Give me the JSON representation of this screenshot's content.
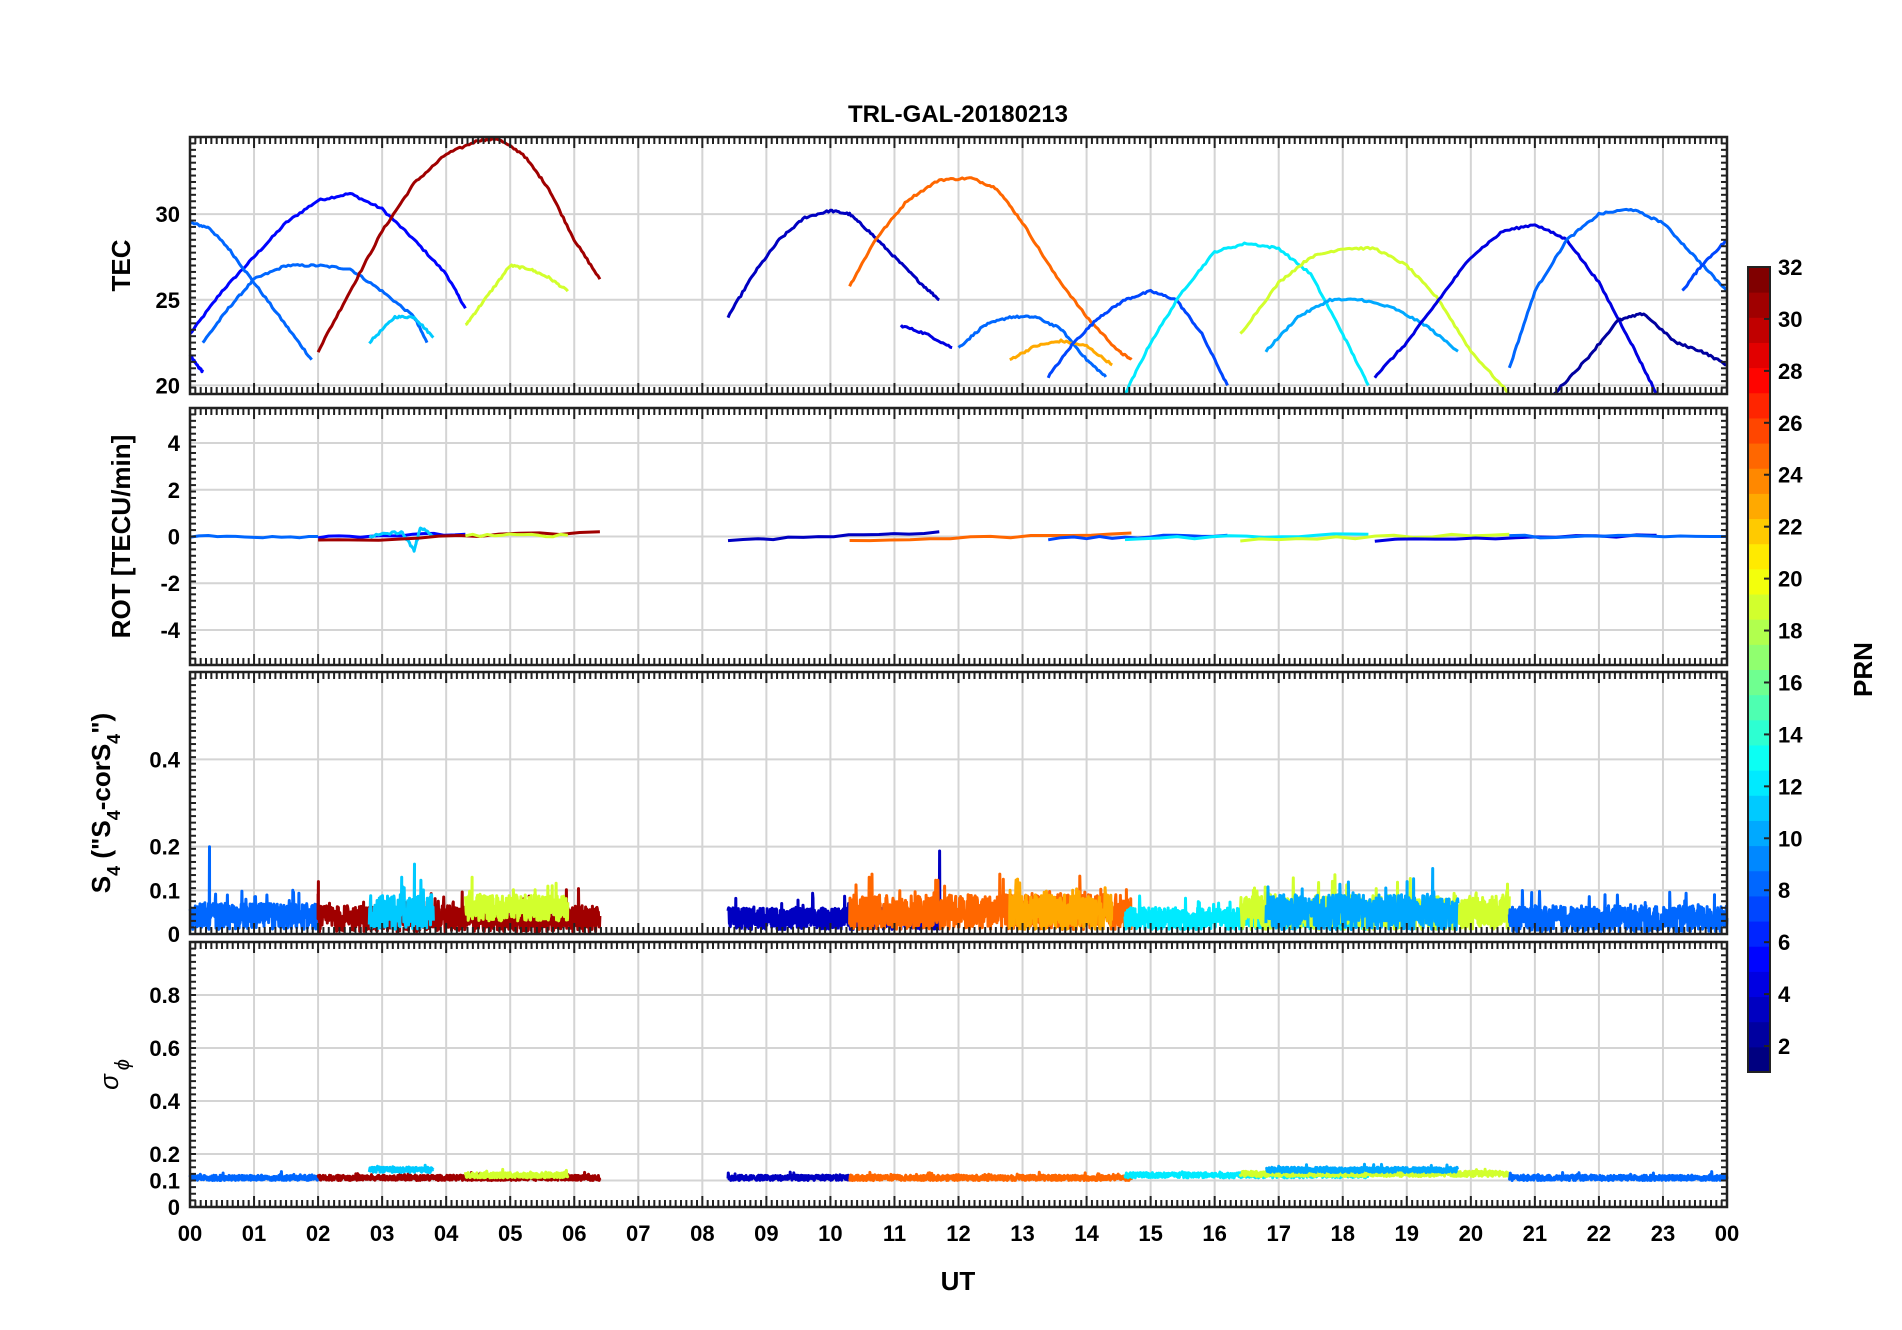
{
  "chart_data": {
    "type": "line",
    "title": "TRL-GAL-20180213",
    "xlabel": "UT",
    "x_ticks": [
      "00",
      "01",
      "02",
      "03",
      "04",
      "05",
      "06",
      "07",
      "08",
      "09",
      "10",
      "11",
      "12",
      "13",
      "14",
      "15",
      "16",
      "17",
      "18",
      "19",
      "20",
      "21",
      "22",
      "23",
      "00"
    ],
    "xlim": [
      0,
      24
    ],
    "colorbar": {
      "label": "PRN",
      "range": [
        1,
        32
      ],
      "ticks": [
        "2",
        "4",
        "6",
        "8",
        "10",
        "12",
        "14",
        "16",
        "18",
        "20",
        "22",
        "24",
        "26",
        "28",
        "30",
        "32"
      ],
      "colormap": "jet"
    },
    "panels": [
      {
        "name": "tec",
        "ylabel": "TEC",
        "ylim": [
          19.5,
          34.5
        ],
        "yticks": [
          20,
          25,
          30
        ],
        "ytick_labels": [
          "20",
          "25",
          "30"
        ],
        "series": [
          {
            "prn": 5,
            "x": [
              0.0,
              0.5,
              1.0,
              1.5,
              2.0,
              2.5,
              3.0,
              3.5,
              4.0,
              4.3
            ],
            "y": [
              23.0,
              25.5,
              27.5,
              29.5,
              30.8,
              31.2,
              30.3,
              28.5,
              26.5,
              24.5
            ]
          },
          {
            "prn": 8,
            "x": [
              0.0,
              0.3,
              0.6,
              1.0,
              1.5,
              1.9
            ],
            "y": [
              29.5,
              29.2,
              28.0,
              26.0,
              23.5,
              21.5
            ]
          },
          {
            "prn": 8,
            "x": [
              0.2,
              0.6,
              1.0,
              1.5,
              2.0,
              2.5,
              3.0,
              3.5,
              3.7
            ],
            "y": [
              22.5,
              24.5,
              26.2,
              27.0,
              27.0,
              26.8,
              25.5,
              24.0,
              22.5
            ]
          },
          {
            "prn": 5,
            "x": [
              0.0,
              0.1,
              0.2
            ],
            "y": [
              21.8,
              21.2,
              20.8
            ]
          },
          {
            "prn": 11,
            "x": [
              2.8,
              3.2,
              3.5,
              3.8
            ],
            "y": [
              22.5,
              24.0,
              24.0,
              22.8
            ]
          },
          {
            "prn": 31,
            "x": [
              2.0,
              2.5,
              3.0,
              3.5,
              4.0,
              4.5,
              4.8,
              5.2,
              5.6,
              6.0,
              6.4
            ],
            "y": [
              22.0,
              25.5,
              29.0,
              31.8,
              33.5,
              34.3,
              34.4,
              33.5,
              31.5,
              28.5,
              26.2
            ]
          },
          {
            "prn": 19,
            "x": [
              4.3,
              4.6,
              5.0,
              5.3,
              5.6,
              5.9
            ],
            "y": [
              23.5,
              25.0,
              27.0,
              26.8,
              26.3,
              25.5
            ]
          },
          {
            "prn": 3,
            "x": [
              8.4,
              8.8,
              9.2,
              9.6,
              10.0,
              10.3,
              10.6,
              11.0,
              11.4,
              11.7
            ],
            "y": [
              24.0,
              26.5,
              28.5,
              29.8,
              30.2,
              30.0,
              29.0,
              27.5,
              26.0,
              25.0
            ]
          },
          {
            "prn": 25,
            "x": [
              10.3,
              10.7,
              11.2,
              11.7,
              12.2,
              12.6,
              13.0,
              13.5,
              14.0,
              14.5,
              14.7
            ],
            "y": [
              25.8,
              28.5,
              30.8,
              32.0,
              32.1,
              31.5,
              29.5,
              26.5,
              24.0,
              22.0,
              21.5
            ]
          },
          {
            "prn": 4,
            "x": [
              11.1,
              11.5,
              11.9
            ],
            "y": [
              23.5,
              23.0,
              22.2
            ]
          },
          {
            "prn": 8,
            "x": [
              12.0,
              12.4,
              12.8,
              13.2,
              13.6,
              14.0,
              14.3
            ],
            "y": [
              22.2,
              23.5,
              24.0,
              24.0,
              23.3,
              21.5,
              20.5
            ]
          },
          {
            "prn": 23,
            "x": [
              12.8,
              13.2,
              13.6,
              14.0,
              14.4
            ],
            "y": [
              21.5,
              22.3,
              22.6,
              22.3,
              21.2
            ]
          },
          {
            "prn": 7,
            "x": [
              13.4,
              13.8,
              14.2,
              14.6,
              15.0,
              15.4,
              15.8,
              16.2
            ],
            "y": [
              20.5,
              22.5,
              24.0,
              25.0,
              25.5,
              25.0,
              23.0,
              20.0
            ]
          },
          {
            "prn": 12,
            "x": [
              14.6,
              15.0,
              15.5,
              16.0,
              16.5,
              17.0,
              17.5,
              18.0,
              18.4
            ],
            "y": [
              19.5,
              22.5,
              25.5,
              27.8,
              28.3,
              28.0,
              26.5,
              23.0,
              20.0
            ]
          },
          {
            "prn": 19,
            "x": [
              16.4,
              17.0,
              17.5,
              18.0,
              18.5,
              19.0,
              19.5,
              20.0,
              20.6
            ],
            "y": [
              23.0,
              26.0,
              27.5,
              28.0,
              28.0,
              27.0,
              25.0,
              22.0,
              19.5
            ]
          },
          {
            "prn": 10,
            "x": [
              16.8,
              17.3,
              17.8,
              18.3,
              18.8,
              19.3,
              19.8
            ],
            "y": [
              22.0,
              24.0,
              25.0,
              25.0,
              24.5,
              23.5,
              22.0
            ]
          },
          {
            "prn": 4,
            "x": [
              18.5,
              19.0,
              19.5,
              20.0,
              20.5,
              21.0,
              21.5,
              22.0,
              22.5,
              22.9
            ],
            "y": [
              20.5,
              22.5,
              25.0,
              27.5,
              29.0,
              29.4,
              28.5,
              26.0,
              22.5,
              19.5
            ]
          },
          {
            "prn": 8,
            "x": [
              20.6,
              21.0,
              21.5,
              22.0,
              22.5,
              23.0,
              23.5,
              24.0
            ],
            "y": [
              21.0,
              25.5,
              28.5,
              30.0,
              30.3,
              29.5,
              27.5,
              25.5
            ]
          },
          {
            "prn": 2,
            "x": [
              21.3,
              21.8,
              22.3,
              22.7,
              23.2,
              23.6,
              24.0
            ],
            "y": [
              19.5,
              21.5,
              23.8,
              24.2,
              22.5,
              22.0,
              21.2
            ]
          },
          {
            "prn": 7,
            "x": [
              23.3,
              23.6,
              24.0
            ],
            "y": [
              25.5,
              27.0,
              28.5
            ]
          }
        ]
      },
      {
        "name": "rot",
        "ylabel": "ROT [TECU/min]",
        "ylim": [
          -5.5,
          5.5
        ],
        "yticks": [
          -4,
          -2,
          0,
          2,
          4
        ],
        "ytick_labels": [
          "-4",
          "-2",
          "0",
          "2",
          "4"
        ],
        "series": [
          {
            "prn": 8,
            "x": [
              0.0,
              2.0
            ],
            "y": [
              0.0,
              0.0
            ]
          },
          {
            "prn": 5,
            "x": [
              2.0,
              4.3
            ],
            "y": [
              0.0,
              0.1
            ]
          },
          {
            "prn": 11,
            "x": [
              2.8,
              3.3,
              3.5,
              3.6,
              3.8
            ],
            "y": [
              0.0,
              0.2,
              -0.6,
              0.4,
              0.0
            ]
          },
          {
            "prn": 31,
            "x": [
              2.0,
              6.4
            ],
            "y": [
              -0.2,
              0.2
            ]
          },
          {
            "prn": 19,
            "x": [
              4.3,
              5.9
            ],
            "y": [
              0.05,
              0.05
            ]
          },
          {
            "prn": 3,
            "x": [
              8.4,
              11.7
            ],
            "y": [
              -0.15,
              0.2
            ]
          },
          {
            "prn": 25,
            "x": [
              10.3,
              14.7
            ],
            "y": [
              -0.2,
              0.15
            ]
          },
          {
            "prn": 7,
            "x": [
              13.4,
              16.2
            ],
            "y": [
              -0.1,
              0.05
            ]
          },
          {
            "prn": 12,
            "x": [
              14.6,
              18.4
            ],
            "y": [
              -0.1,
              0.1
            ]
          },
          {
            "prn": 19,
            "x": [
              16.4,
              20.6
            ],
            "y": [
              -0.15,
              0.1
            ]
          },
          {
            "prn": 4,
            "x": [
              18.5,
              22.9
            ],
            "y": [
              -0.15,
              0.05
            ]
          },
          {
            "prn": 8,
            "x": [
              20.6,
              24.0
            ],
            "y": [
              0.0,
              0.0
            ]
          }
        ]
      },
      {
        "name": "s4",
        "ylabel": "S4 (\"S4-corS4\")",
        "ylim": [
          0,
          0.6
        ],
        "yticks": [
          0,
          0.1,
          0.2,
          0.4
        ],
        "ytick_labels": [
          "0",
          "0.1",
          "0.2",
          "0.4"
        ],
        "series": [
          {
            "prn": 8,
            "x": [
              0.0,
              2.0
            ],
            "base": 0.04,
            "amp": 0.03,
            "spikes": [
              [
                0.3,
                0.2
              ]
            ]
          },
          {
            "prn": 31,
            "x": [
              2.0,
              6.4
            ],
            "base": 0.035,
            "amp": 0.03,
            "spikes": [
              [
                2.0,
                0.12
              ]
            ]
          },
          {
            "prn": 11,
            "x": [
              2.8,
              3.8
            ],
            "base": 0.05,
            "amp": 0.04,
            "spikes": [
              [
                3.5,
                0.16
              ],
              [
                3.3,
                0.13
              ]
            ]
          },
          {
            "prn": 19,
            "x": [
              4.3,
              5.9
            ],
            "base": 0.06,
            "amp": 0.03,
            "spikes": [
              [
                4.4,
                0.13
              ]
            ]
          },
          {
            "prn": 3,
            "x": [
              8.4,
              11.7
            ],
            "base": 0.035,
            "amp": 0.025,
            "spikes": [
              [
                11.7,
                0.19
              ]
            ]
          },
          {
            "prn": 25,
            "x": [
              10.3,
              14.7
            ],
            "base": 0.05,
            "amp": 0.04,
            "spikes": [
              [
                10.6,
                0.13
              ]
            ]
          },
          {
            "prn": 23,
            "x": [
              12.8,
              14.4
            ],
            "base": 0.05,
            "amp": 0.04,
            "spikes": [
              [
                12.8,
                0.1
              ]
            ]
          },
          {
            "prn": 12,
            "x": [
              14.6,
              18.4
            ],
            "base": 0.035,
            "amp": 0.025,
            "spikes": [
              [
                17.8,
                0.08
              ]
            ]
          },
          {
            "prn": 19,
            "x": [
              16.4,
              20.6
            ],
            "base": 0.05,
            "amp": 0.04,
            "spikes": [
              [
                16.6,
                0.1
              ]
            ]
          },
          {
            "prn": 10,
            "x": [
              16.8,
              19.8
            ],
            "base": 0.05,
            "amp": 0.04,
            "spikes": [
              [
                19.4,
                0.15
              ],
              [
                19.0,
                0.12
              ]
            ]
          },
          {
            "prn": 8,
            "x": [
              20.6,
              24.0
            ],
            "base": 0.035,
            "amp": 0.03,
            "spikes": [
              [
                23.8,
                0.09
              ]
            ]
          }
        ]
      },
      {
        "name": "sigma-phi",
        "ylabel": "σ ϕ",
        "ylim": [
          0,
          1.0
        ],
        "yticks": [
          0,
          0.1,
          0.2,
          0.4,
          0.6,
          0.8
        ],
        "ytick_labels": [
          "0",
          "0.1",
          "0.2",
          "0.4",
          "0.6",
          "0.8"
        ],
        "series": [
          {
            "prn": 8,
            "x": [
              0.0,
              2.0
            ],
            "base": 0.11,
            "amp": 0.01
          },
          {
            "prn": 31,
            "x": [
              2.0,
              6.4
            ],
            "base": 0.11,
            "amp": 0.01
          },
          {
            "prn": 11,
            "x": [
              2.8,
              3.8
            ],
            "base": 0.14,
            "amp": 0.01
          },
          {
            "prn": 19,
            "x": [
              4.3,
              5.9
            ],
            "base": 0.12,
            "amp": 0.01
          },
          {
            "prn": 3,
            "x": [
              8.4,
              10.3
            ],
            "base": 0.11,
            "amp": 0.01
          },
          {
            "prn": 25,
            "x": [
              10.3,
              14.7
            ],
            "base": 0.11,
            "amp": 0.01
          },
          {
            "prn": 12,
            "x": [
              14.6,
              18.4
            ],
            "base": 0.12,
            "amp": 0.01
          },
          {
            "prn": 19,
            "x": [
              16.4,
              20.6
            ],
            "base": 0.125,
            "amp": 0.01
          },
          {
            "prn": 10,
            "x": [
              16.8,
              19.8
            ],
            "base": 0.14,
            "amp": 0.01
          },
          {
            "prn": 8,
            "x": [
              20.6,
              24.0
            ],
            "base": 0.11,
            "amp": 0.01
          }
        ]
      }
    ]
  }
}
